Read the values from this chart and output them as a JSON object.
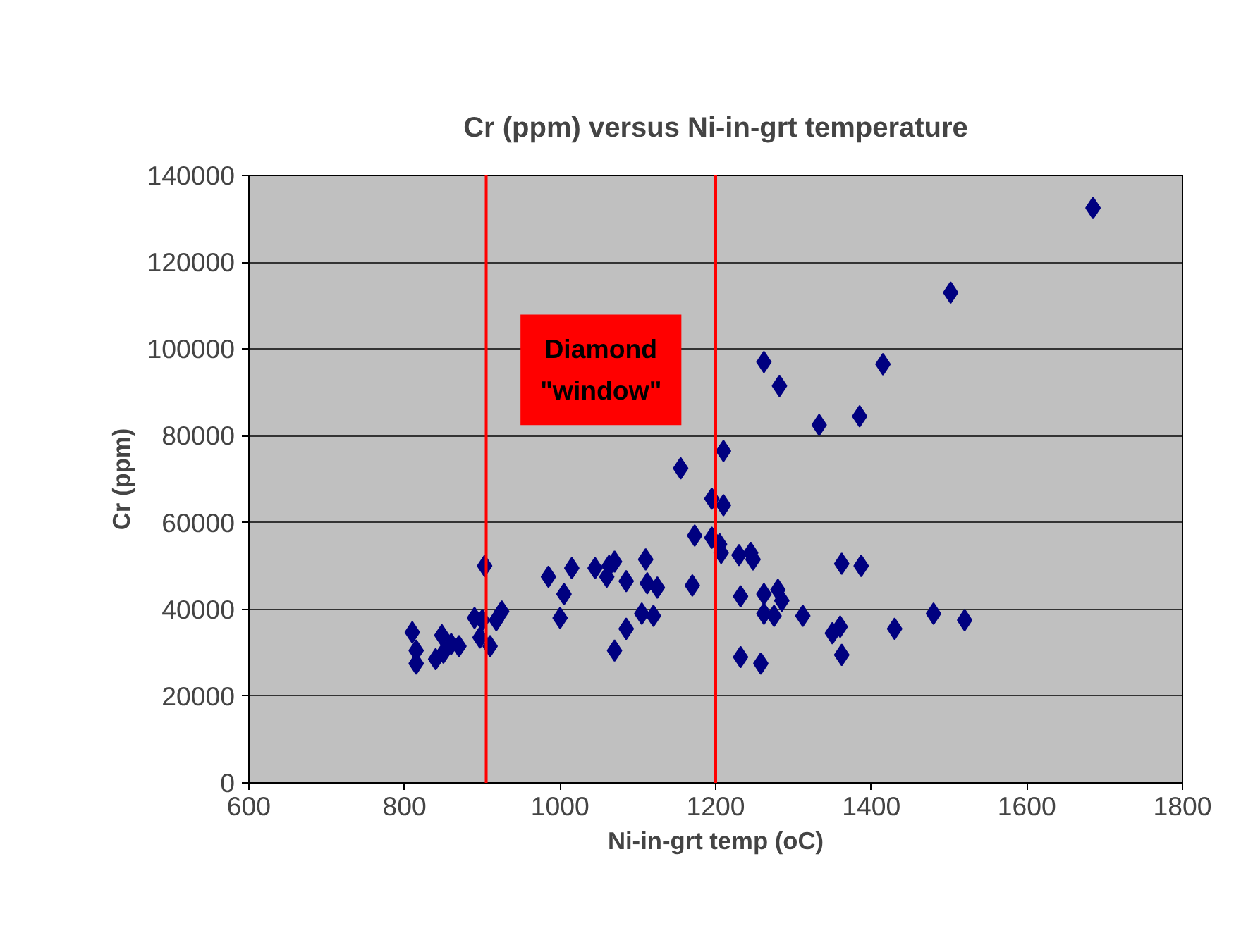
{
  "chart_data": {
    "type": "scatter",
    "title": "Cr (ppm) versus Ni-in-grt temperature",
    "xlabel": "Ni-in-grt temp (oC)",
    "ylabel": "Cr (ppm)",
    "x": [
      810,
      815,
      815,
      840,
      848,
      850,
      860,
      870,
      890,
      897,
      900,
      903,
      910,
      918,
      925,
      985,
      1000,
      1005,
      1015,
      1045,
      1060,
      1063,
      1070,
      1070,
      1085,
      1085,
      1105,
      1110,
      1112,
      1120,
      1125,
      1155,
      1170,
      1173,
      1195,
      1195,
      1205,
      1207,
      1210,
      1210,
      1230,
      1232,
      1232,
      1245,
      1248,
      1258,
      1262,
      1262,
      1262,
      1275,
      1280,
      1282,
      1285,
      1312,
      1333,
      1350,
      1360,
      1362,
      1362,
      1385,
      1387,
      1415,
      1430,
      1480,
      1502,
      1520,
      1685
    ],
    "series": [
      {
        "color": "#000080",
        "values": [
          34700,
          30500,
          27500,
          28500,
          34000,
          30000,
          32000,
          31500,
          38000,
          33500,
          37500,
          50000,
          31500,
          37500,
          39500,
          47500,
          38000,
          43500,
          49500,
          49500,
          47500,
          50000,
          51000,
          30500,
          35500,
          46500,
          39000,
          51500,
          46000,
          38500,
          45000,
          72500,
          45500,
          57000,
          65500,
          56500,
          55000,
          53000,
          64000,
          76500,
          52500,
          43000,
          29000,
          53000,
          51500,
          27500,
          97000,
          39000,
          43500,
          38500,
          44500,
          91500,
          42000,
          38500,
          82500,
          34500,
          36000,
          50500,
          29500,
          84500,
          50000,
          96500,
          35500,
          39000,
          113000,
          37500,
          132500
        ]
      }
    ],
    "xlim": [
      600,
      1800
    ],
    "xticks": [
      600,
      800,
      1000,
      1200,
      1400,
      1600,
      1800
    ],
    "ylim": [
      0,
      140000
    ],
    "yticks": [
      0,
      20000,
      40000,
      60000,
      80000,
      100000,
      120000,
      140000
    ],
    "grid": "y",
    "marker": "diamond",
    "ref_lines": [
      {
        "axis": "x",
        "value": 905,
        "color": "#ff0000"
      },
      {
        "axis": "x",
        "value": 1200,
        "color": "#ff0000"
      }
    ],
    "annotations": [
      "Diamond\n\"window\""
    ]
  }
}
